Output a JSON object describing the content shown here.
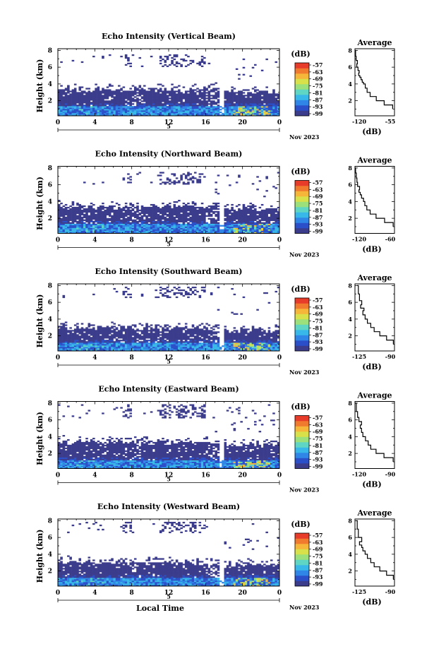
{
  "figure": {
    "xlabel": "Local Time",
    "unit_label": "(dB)",
    "month_label": "Nov 2023",
    "day_label": "5",
    "avg_title": "Average",
    "avg_xlabel": "(dB)",
    "ylabel": "Height (km)"
  },
  "colorbar": {
    "ticks": [
      "-57",
      "-63",
      "-69",
      "-75",
      "-81",
      "-87",
      "-93",
      "-99"
    ],
    "colors": [
      "#3c3c8c",
      "#2a4fc9",
      "#2f86e6",
      "#38b8e8",
      "#5fd6c4",
      "#9be07a",
      "#d8e04a",
      "#f5b63a",
      "#f07a2e",
      "#e83c2a"
    ]
  },
  "chart_data": [
    {
      "type": "heatmap",
      "title": "Echo Intensity (Vertical Beam)",
      "xlabel": "",
      "ylabel": "Height (km)",
      "xlim": [
        0,
        24
      ],
      "x_ticks": [
        "0",
        "4",
        "8",
        "12",
        "16",
        "20",
        "0"
      ],
      "ylim": [
        0.2,
        8.2
      ],
      "y_ticks": [
        "2",
        "4",
        "6",
        "8"
      ],
      "layer_top_km": 3.3,
      "clutter_top_km": 1.3,
      "cloud_km": [
        6.0,
        7.5
      ],
      "gap_hours": [
        17.5,
        18.0
      ],
      "average": {
        "title": "Average",
        "xlabel": "(dB)",
        "xlim": [
          -120,
          -55
        ],
        "x_ticks": [
          "-120",
          "-55"
        ],
        "ylim": [
          0.2,
          8.2
        ],
        "y_ticks": [
          "2",
          "4",
          "6",
          "8"
        ],
        "x": [
          -58,
          -72,
          -85,
          -95,
          -100,
          -103,
          -106,
          -108,
          -110,
          -112,
          -114,
          -113,
          -115,
          -117,
          -116,
          -118,
          -119,
          -120
        ],
        "y": [
          1.0,
          1.5,
          2.0,
          2.5,
          3.0,
          3.5,
          4.0,
          4.2,
          4.5,
          4.8,
          5.0,
          5.3,
          5.6,
          6.0,
          6.4,
          6.8,
          7.3,
          8.0
        ]
      }
    },
    {
      "type": "heatmap",
      "title": "Echo Intensity (Northward Beam)",
      "xlabel": "",
      "ylabel": "Height (km)",
      "xlim": [
        0,
        24
      ],
      "x_ticks": [
        "0",
        "4",
        "8",
        "12",
        "16",
        "20",
        "0"
      ],
      "ylim": [
        0.2,
        8.2
      ],
      "y_ticks": [
        "2",
        "4",
        "6",
        "8"
      ],
      "layer_top_km": 3.4,
      "clutter_top_km": 1.3,
      "cloud_km": [
        6.0,
        7.5
      ],
      "gap_hours": [
        17.5,
        18.0
      ],
      "average": {
        "title": "Average",
        "xlabel": "(dB)",
        "xlim": [
          -120,
          -60
        ],
        "x_ticks": [
          "-120",
          "-60"
        ],
        "ylim": [
          0.2,
          8.2
        ],
        "y_ticks": [
          "2",
          "4",
          "6",
          "8"
        ],
        "x": [
          -62,
          -75,
          -88,
          -97,
          -102,
          -105,
          -107,
          -110,
          -112,
          -114,
          -113,
          -116,
          -117,
          -118,
          -119,
          -120
        ],
        "y": [
          1.0,
          1.5,
          2.0,
          2.5,
          3.0,
          3.5,
          4.0,
          4.4,
          4.8,
          5.1,
          5.4,
          5.8,
          6.3,
          6.8,
          7.4,
          8.0
        ]
      }
    },
    {
      "type": "heatmap",
      "title": "Echo Intensity (Southward Beam)",
      "xlabel": "",
      "ylabel": "Height (km)",
      "xlim": [
        0,
        24
      ],
      "x_ticks": [
        "0",
        "4",
        "8",
        "12",
        "16",
        "20",
        "0"
      ],
      "ylim": [
        0.2,
        8.2
      ],
      "y_ticks": [
        "2",
        "4",
        "6",
        "8"
      ],
      "layer_top_km": 2.9,
      "clutter_top_km": 1.2,
      "cloud_km": [
        6.5,
        7.8
      ],
      "gap_hours": [
        17.5,
        18.0
      ],
      "average": {
        "title": "Average",
        "xlabel": "(dB)",
        "xlim": [
          -125,
          -90
        ],
        "x_ticks": [
          "-125",
          "-90"
        ],
        "ylim": [
          0.2,
          8.2
        ],
        "y_ticks": [
          "2",
          "4",
          "6",
          "8"
        ],
        "x": [
          -91,
          -97,
          -103,
          -108,
          -111,
          -114,
          -116,
          -118,
          -117,
          -120,
          -119,
          -121,
          -122,
          -123
        ],
        "y": [
          1.0,
          1.5,
          2.0,
          2.5,
          3.0,
          3.5,
          4.0,
          4.5,
          5.0,
          5.3,
          5.7,
          6.2,
          7.0,
          8.0
        ]
      }
    },
    {
      "type": "heatmap",
      "title": "Echo Intensity (Eastward Beam)",
      "xlabel": "",
      "ylabel": "Height (km)",
      "xlim": [
        0,
        24
      ],
      "x_ticks": [
        "0",
        "4",
        "8",
        "12",
        "16",
        "20",
        "0"
      ],
      "ylim": [
        0.2,
        8.2
      ],
      "y_ticks": [
        "2",
        "4",
        "6",
        "8"
      ],
      "layer_top_km": 3.3,
      "clutter_top_km": 1.2,
      "cloud_km": [
        6.2,
        7.8
      ],
      "gap_hours": [
        17.5,
        18.0
      ],
      "average": {
        "title": "Average",
        "xlabel": "(dB)",
        "xlim": [
          -120,
          -90
        ],
        "x_ticks": [
          "-120",
          "-90"
        ],
        "ylim": [
          0.2,
          8.2
        ],
        "y_ticks": [
          "2",
          "4",
          "6",
          "8"
        ],
        "x": [
          -91,
          -98,
          -104,
          -108,
          -110,
          -112,
          -114,
          -115,
          -116,
          -115,
          -117,
          -118,
          -119,
          -120
        ],
        "y": [
          1.0,
          1.5,
          2.0,
          2.5,
          3.0,
          3.5,
          4.0,
          4.5,
          5.0,
          5.4,
          5.8,
          6.3,
          7.0,
          8.0
        ]
      }
    },
    {
      "type": "heatmap",
      "title": "Echo Intensity (Westward Beam)",
      "xlabel": "Local Time",
      "ylabel": "Height (km)",
      "xlim": [
        0,
        24
      ],
      "x_ticks": [
        "0",
        "4",
        "8",
        "12",
        "16",
        "20",
        "0"
      ],
      "ylim": [
        0.2,
        8.2
      ],
      "y_ticks": [
        "2",
        "4",
        "6",
        "8"
      ],
      "layer_top_km": 3.0,
      "clutter_top_km": 1.2,
      "cloud_km": [
        6.5,
        7.8
      ],
      "gap_hours": [
        17.5,
        18.0
      ],
      "average": {
        "title": "Average",
        "xlabel": "(dB)",
        "xlim": [
          -125,
          -90
        ],
        "x_ticks": [
          "-125",
          "-90"
        ],
        "ylim": [
          0.2,
          8.2
        ],
        "y_ticks": [
          "2",
          "4",
          "6",
          "8"
        ],
        "x": [
          -91,
          -97,
          -103,
          -108,
          -111,
          -114,
          -116,
          -118,
          -119,
          -121,
          -119,
          -122,
          -123,
          -124
        ],
        "y": [
          1.0,
          1.5,
          2.0,
          2.5,
          3.0,
          3.5,
          4.0,
          4.4,
          4.8,
          5.1,
          5.5,
          6.0,
          7.0,
          8.0
        ]
      }
    }
  ]
}
